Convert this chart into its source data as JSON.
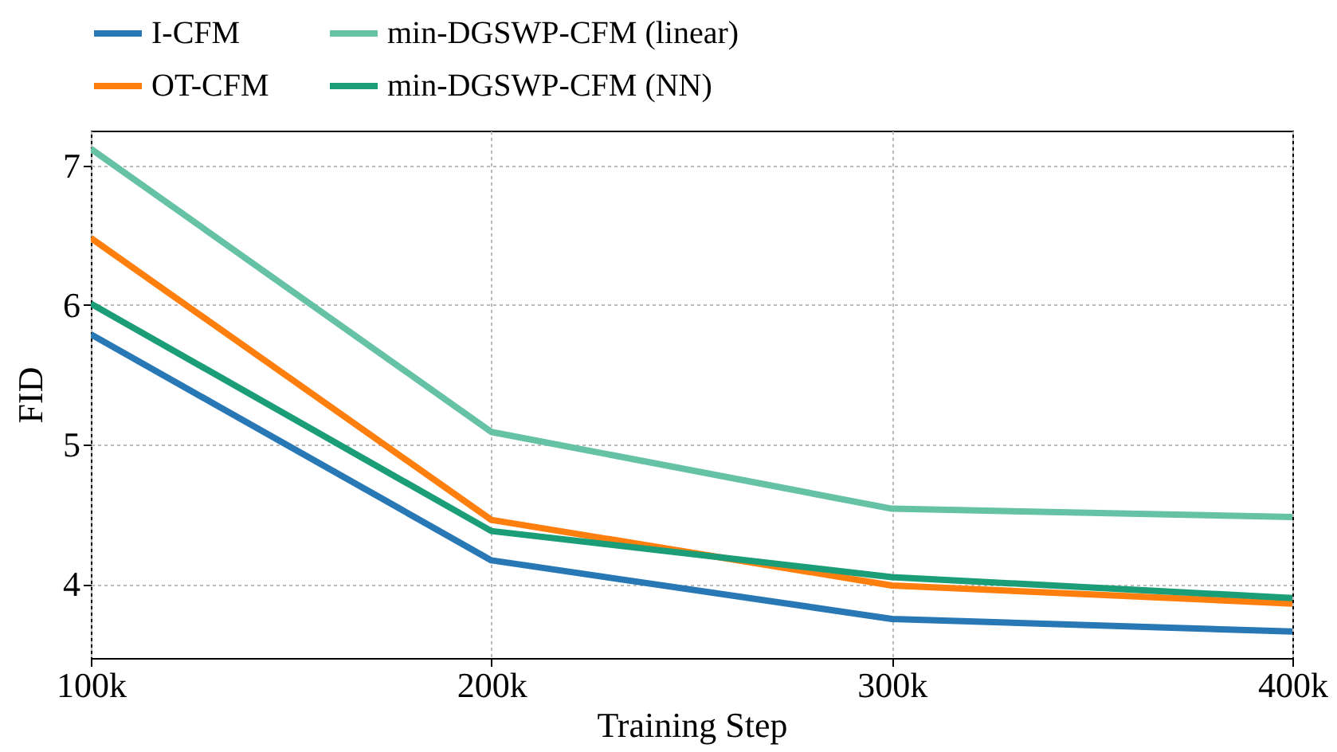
{
  "chart_data": {
    "type": "line",
    "xlabel": "Training Step",
    "ylabel": "FID",
    "x": [
      100000,
      200000,
      300000,
      400000
    ],
    "xlim": [
      100000,
      400000
    ],
    "xticks": [
      {
        "value": 100000,
        "label": "100k"
      },
      {
        "value": 200000,
        "label": "200k"
      },
      {
        "value": 300000,
        "label": "300k"
      },
      {
        "value": 400000,
        "label": "400k"
      }
    ],
    "ylim": [
      3.47,
      7.25
    ],
    "yticks": [
      4,
      5,
      6,
      7
    ],
    "grid": true,
    "legend": "top",
    "line_style": "solid",
    "marker": "none",
    "series": [
      {
        "name": "I-CFM",
        "color": "#2878b5",
        "values": [
          5.79,
          4.17,
          3.75,
          3.66
        ]
      },
      {
        "name": "OT-CFM",
        "color": "#ff7f0e",
        "values": [
          6.48,
          4.46,
          3.99,
          3.86
        ]
      },
      {
        "name": "min-DGSWP-CFM (linear)",
        "color": "#66c2a5",
        "values": [
          7.12,
          5.09,
          4.54,
          4.48
        ]
      },
      {
        "name": "min-DGSWP-CFM (NN)",
        "color": "#1b9e77",
        "values": [
          6.01,
          4.38,
          4.05,
          3.9
        ]
      }
    ]
  }
}
